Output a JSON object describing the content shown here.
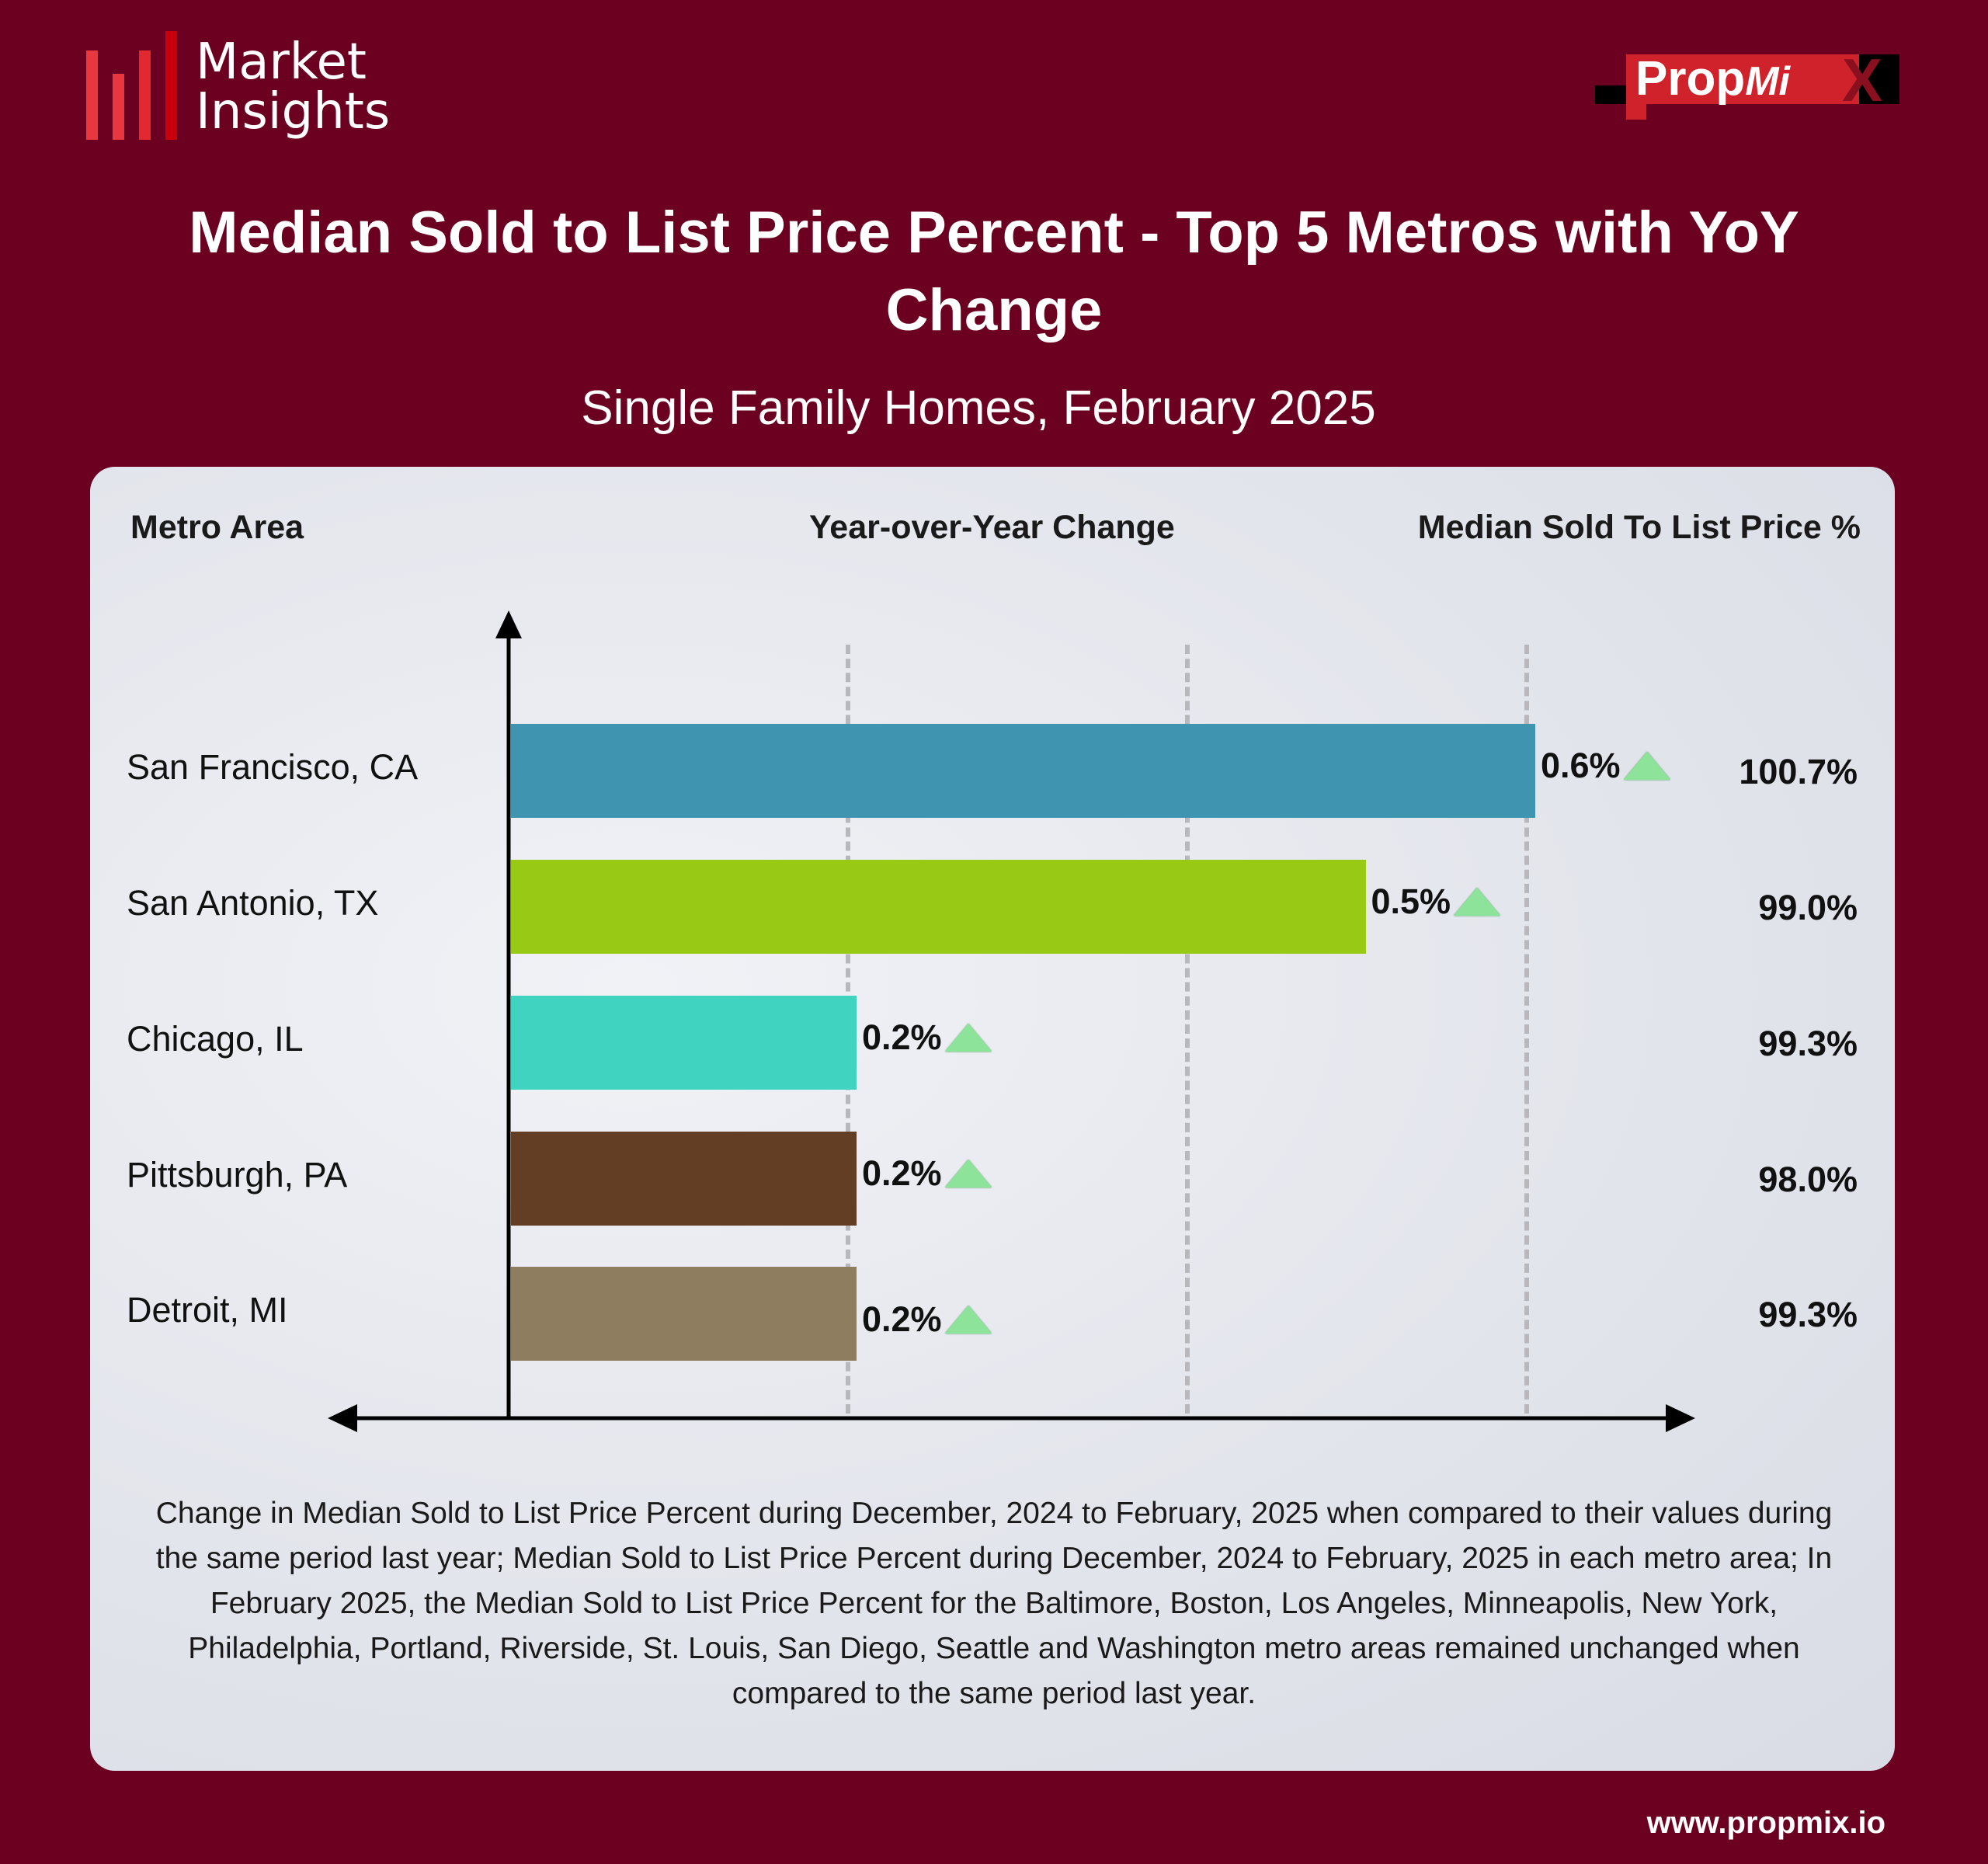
{
  "logo": {
    "line1": "Market",
    "line2": "Insights",
    "bar_colors": [
      "#e8373f",
      "#e8373f",
      "#e02a30",
      "#c8000a"
    ]
  },
  "brand": {
    "name_main": "Prop",
    "name_italic": "Mi",
    "name_x": "X"
  },
  "title": "Median Sold to List Price Percent - Top 5 Metros with YoY Change",
  "subtitle": "Single Family Homes, February 2025",
  "footer_url": "www.propmix.io",
  "chart_data": {
    "type": "bar",
    "orientation": "horizontal",
    "columns": {
      "metro": "Metro Area",
      "yoy": "Year-over-Year Change",
      "stl": "Median Sold To List Price %"
    },
    "categories": [
      "San Francisco, CA",
      "San Antonio, TX",
      "Chicago, IL",
      "Pittsburgh, PA",
      "Detroit, MI"
    ],
    "yoy_values": [
      0.6,
      0.5,
      0.2,
      0.2,
      0.2
    ],
    "yoy_labels": [
      "0.6%",
      "0.5%",
      "0.2%",
      "0.2%",
      "0.2%"
    ],
    "direction": [
      "up",
      "up",
      "up",
      "up",
      "up"
    ],
    "stl_labels": [
      "100.7%",
      "99.0%",
      "99.3%",
      "98.0%",
      "99.3%"
    ],
    "stl_values": [
      100.7,
      99.0,
      99.3,
      98.0,
      99.3
    ],
    "colors": [
      "#3f95b0",
      "#98c914",
      "#40d3c0",
      "#633e25",
      "#8e7d5f"
    ],
    "xlim": [
      0,
      0.6
    ],
    "gridlines": [
      0.2,
      0.4,
      0.6
    ]
  },
  "footnote": "Change in Median Sold to List Price Percent during December, 2024 to February, 2025 when compared to their values during the same period last year; Median Sold to List Price Percent during December, 2024 to February, 2025 in each metro area;  In February 2025, the Median Sold to List Price Percent for the  Baltimore, Boston, Los Angeles, Minneapolis, New York, Philadelphia, Portland, Riverside, St. Louis, San Diego, Seattle and Washington metro areas remained unchanged when compared to the same period last year."
}
